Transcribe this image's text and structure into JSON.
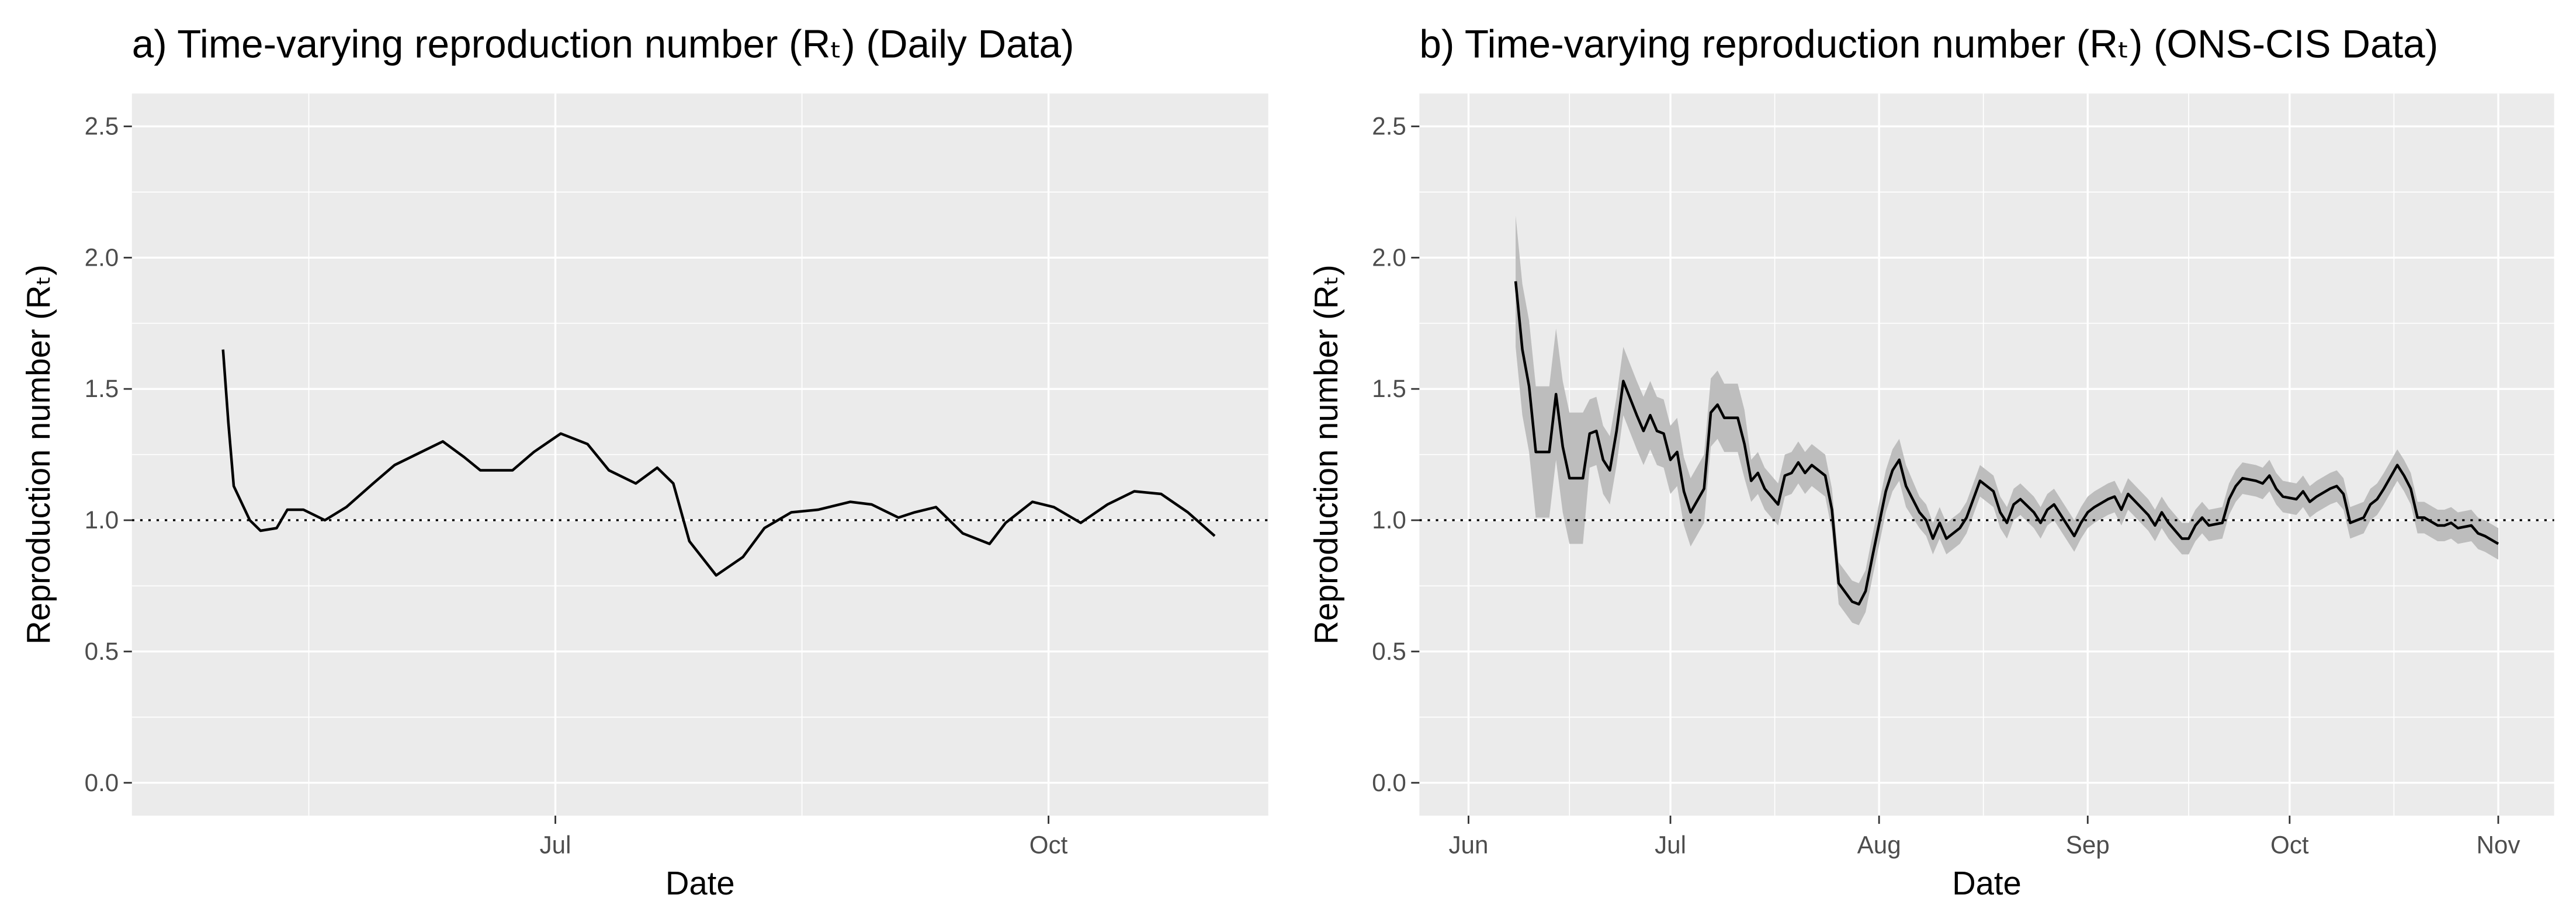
{
  "chart_data": [
    {
      "type": "line",
      "title": "a) Time-varying reproduction number (Rₜ) (Daily Data)",
      "xlabel": "Date",
      "ylabel": "Reproduction number (Rₜ)",
      "xlim": [
        103,
        315
      ],
      "xticks": [
        {
          "value": 182,
          "label": "Jul"
        },
        {
          "value": 274,
          "label": "Oct"
        }
      ],
      "ylim": [
        -0.125,
        2.625
      ],
      "yticks": [
        {
          "value": 0,
          "label": "0.0"
        },
        {
          "value": 0.5,
          "label": "0.5"
        },
        {
          "value": 1,
          "label": "1.0"
        },
        {
          "value": 1.5,
          "label": "1.5"
        },
        {
          "value": 2,
          "label": "2.0"
        },
        {
          "value": 2.5,
          "label": "2.5"
        }
      ],
      "hline": 1,
      "grid": true,
      "color": "#000000",
      "x": [
        120,
        121,
        122,
        125,
        127,
        130,
        132,
        135,
        139,
        143,
        148,
        152,
        157,
        161,
        165,
        168,
        174,
        178,
        183,
        188,
        192,
        197,
        201,
        204,
        207,
        212,
        217,
        221,
        226,
        231,
        237,
        241,
        246,
        249,
        253,
        258,
        263,
        266,
        271,
        275,
        280,
        285,
        290,
        295,
        300,
        305
      ],
      "values": [
        1.65,
        1.37,
        1.13,
        1.0,
        0.96,
        0.97,
        1.04,
        1.04,
        1.0,
        1.05,
        1.14,
        1.21,
        1.26,
        1.3,
        1.24,
        1.19,
        1.19,
        1.26,
        1.33,
        1.29,
        1.19,
        1.14,
        1.2,
        1.14,
        0.92,
        0.79,
        0.86,
        0.97,
        1.03,
        1.04,
        1.07,
        1.06,
        1.01,
        1.03,
        1.05,
        0.95,
        0.91,
        0.99,
        1.07,
        1.05,
        0.99,
        1.06,
        1.11,
        1.1,
        1.03,
        0.94
      ]
    },
    {
      "type": "line",
      "title": "b) Time-varying reproduction number (Rₜ) (ONS-CIS Data)",
      "xlabel": "Date",
      "ylabel": "Reproduction number (Rₜ)",
      "xlim": [
        144.7,
        313.3
      ],
      "xticks": [
        {
          "value": 152,
          "label": "Jun"
        },
        {
          "value": 182,
          "label": "Jul"
        },
        {
          "value": 213,
          "label": "Aug"
        },
        {
          "value": 244,
          "label": "Sep"
        },
        {
          "value": 274,
          "label": "Oct"
        },
        {
          "value": 305,
          "label": "Nov"
        }
      ],
      "ylim": [
        -0.125,
        2.625
      ],
      "yticks": [
        {
          "value": 0,
          "label": "0.0"
        },
        {
          "value": 0.5,
          "label": "0.5"
        },
        {
          "value": 1,
          "label": "1.0"
        },
        {
          "value": 1.5,
          "label": "1.5"
        },
        {
          "value": 2,
          "label": "2.0"
        },
        {
          "value": 2.5,
          "label": "2.5"
        }
      ],
      "hline": 1,
      "grid": true,
      "color": "#000000",
      "band_color": "#bdbdbd",
      "x": [
        159,
        160,
        161,
        162,
        164,
        165,
        166,
        167,
        169,
        170,
        171,
        172,
        173,
        174,
        175,
        177,
        178,
        179,
        180,
        181,
        182,
        183,
        184,
        185,
        187,
        188,
        189,
        190,
        192,
        193,
        194,
        195,
        196,
        198,
        199,
        200,
        201,
        202,
        203,
        205,
        206,
        207,
        209,
        210,
        211,
        212,
        214,
        215,
        216,
        217,
        219,
        220,
        221,
        222,
        223,
        225,
        226,
        227,
        228,
        230,
        231,
        232,
        233,
        234,
        236,
        237,
        238,
        239,
        241,
        242,
        243,
        244,
        245,
        247,
        248,
        249,
        250,
        253,
        254,
        255,
        256,
        258,
        259,
        260,
        261,
        262,
        264,
        265,
        266,
        267,
        269,
        270,
        271,
        272,
        273,
        275,
        276,
        277,
        278,
        280,
        281,
        282,
        283,
        285,
        286,
        287,
        288,
        290,
        291,
        292,
        293,
        294,
        296,
        297,
        298,
        299,
        301,
        302,
        303,
        305
      ],
      "values": [
        1.91,
        1.65,
        1.51,
        1.26,
        1.26,
        1.48,
        1.28,
        1.16,
        1.16,
        1.33,
        1.34,
        1.23,
        1.19,
        1.34,
        1.53,
        1.4,
        1.34,
        1.4,
        1.34,
        1.33,
        1.23,
        1.26,
        1.11,
        1.03,
        1.12,
        1.41,
        1.44,
        1.39,
        1.39,
        1.29,
        1.15,
        1.18,
        1.12,
        1.06,
        1.17,
        1.18,
        1.22,
        1.18,
        1.21,
        1.17,
        1.04,
        0.76,
        0.69,
        0.68,
        0.73,
        0.86,
        1.11,
        1.19,
        1.23,
        1.13,
        1.03,
        1.0,
        0.93,
        0.99,
        0.93,
        0.97,
        1.01,
        1.08,
        1.15,
        1.11,
        1.03,
        0.99,
        1.06,
        1.08,
        1.03,
        0.99,
        1.04,
        1.06,
        0.98,
        0.94,
        0.99,
        1.03,
        1.05,
        1.08,
        1.09,
        1.04,
        1.1,
        1.02,
        0.98,
        1.03,
        0.99,
        0.93,
        0.93,
        0.98,
        1.01,
        0.98,
        0.99,
        1.08,
        1.13,
        1.16,
        1.15,
        1.14,
        1.17,
        1.12,
        1.09,
        1.08,
        1.11,
        1.07,
        1.09,
        1.12,
        1.13,
        1.1,
        0.99,
        1.01,
        1.06,
        1.08,
        1.12,
        1.21,
        1.17,
        1.12,
        1.01,
        1.01,
        0.98,
        0.98,
        0.99,
        0.97,
        0.98,
        0.95,
        0.94,
        0.91
      ],
      "lower": [
        1.66,
        1.4,
        1.26,
        1.01,
        1.01,
        1.23,
        1.03,
        0.91,
        0.91,
        1.2,
        1.21,
        1.1,
        1.06,
        1.21,
        1.4,
        1.27,
        1.21,
        1.27,
        1.21,
        1.2,
        1.1,
        1.13,
        0.98,
        0.9,
        0.99,
        1.28,
        1.31,
        1.26,
        1.26,
        1.16,
        1.07,
        1.1,
        1.04,
        0.98,
        1.09,
        1.1,
        1.14,
        1.1,
        1.13,
        1.09,
        0.96,
        0.68,
        0.61,
        0.6,
        0.65,
        0.78,
        1.03,
        1.11,
        1.15,
        1.05,
        0.97,
        0.94,
        0.87,
        0.93,
        0.87,
        0.91,
        0.95,
        1.02,
        1.09,
        1.05,
        0.97,
        0.93,
        1.0,
        1.02,
        0.97,
        0.93,
        0.98,
        1.0,
        0.92,
        0.88,
        0.93,
        0.97,
        0.99,
        1.02,
        1.03,
        0.98,
        1.04,
        0.96,
        0.92,
        0.97,
        0.93,
        0.87,
        0.87,
        0.92,
        0.95,
        0.92,
        0.93,
        1.02,
        1.07,
        1.1,
        1.09,
        1.08,
        1.11,
        1.06,
        1.03,
        1.02,
        1.05,
        1.01,
        1.03,
        1.06,
        1.07,
        1.04,
        0.93,
        0.95,
        1.0,
        1.02,
        1.06,
        1.15,
        1.11,
        1.06,
        0.95,
        0.95,
        0.92,
        0.92,
        0.93,
        0.91,
        0.92,
        0.89,
        0.88,
        0.85
      ],
      "upper": [
        2.16,
        1.9,
        1.76,
        1.51,
        1.51,
        1.73,
        1.53,
        1.41,
        1.41,
        1.46,
        1.47,
        1.36,
        1.32,
        1.47,
        1.66,
        1.53,
        1.47,
        1.53,
        1.47,
        1.46,
        1.36,
        1.39,
        1.24,
        1.16,
        1.25,
        1.54,
        1.57,
        1.52,
        1.52,
        1.42,
        1.23,
        1.26,
        1.2,
        1.14,
        1.25,
        1.26,
        1.3,
        1.26,
        1.29,
        1.25,
        1.12,
        0.84,
        0.77,
        0.76,
        0.81,
        0.94,
        1.19,
        1.27,
        1.31,
        1.21,
        1.09,
        1.06,
        0.99,
        1.05,
        0.99,
        1.03,
        1.07,
        1.14,
        1.21,
        1.17,
        1.09,
        1.05,
        1.12,
        1.14,
        1.09,
        1.05,
        1.1,
        1.12,
        1.04,
        1.0,
        1.05,
        1.09,
        1.11,
        1.14,
        1.15,
        1.1,
        1.16,
        1.08,
        1.04,
        1.09,
        1.05,
        0.99,
        0.99,
        1.04,
        1.07,
        1.04,
        1.05,
        1.14,
        1.19,
        1.22,
        1.21,
        1.2,
        1.23,
        1.18,
        1.15,
        1.14,
        1.17,
        1.13,
        1.15,
        1.18,
        1.19,
        1.16,
        1.05,
        1.07,
        1.12,
        1.14,
        1.18,
        1.27,
        1.23,
        1.18,
        1.07,
        1.07,
        1.04,
        1.04,
        1.05,
        1.03,
        1.04,
        1.01,
        1.0,
        0.97
      ]
    }
  ]
}
